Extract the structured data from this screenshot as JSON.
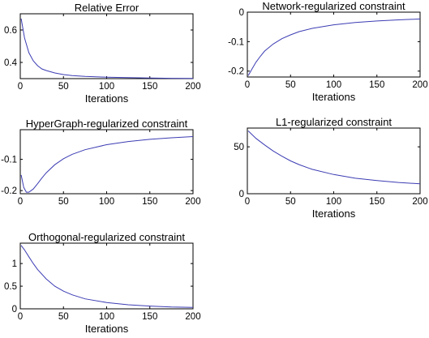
{
  "chart_data": [
    {
      "type": "line",
      "title": "Relative Error",
      "xlabel": "Iterations",
      "ylabel": "",
      "xlim": [
        0,
        200
      ],
      "ylim": [
        0.3,
        0.7
      ],
      "xticks": [
        0,
        50,
        100,
        150,
        200
      ],
      "yticks": [
        0.4,
        0.6
      ],
      "ytick_labels": [
        "0.4",
        "0.6"
      ],
      "grid": false,
      "series": [
        {
          "color": "#3c3cb4",
          "x": [
            1,
            5,
            10,
            15,
            20,
            25,
            30,
            40,
            50,
            60,
            75,
            100,
            125,
            150,
            175,
            200
          ],
          "y": [
            0.67,
            0.55,
            0.46,
            0.41,
            0.38,
            0.36,
            0.35,
            0.335,
            0.325,
            0.319,
            0.314,
            0.309,
            0.306,
            0.304,
            0.302,
            0.301
          ]
        }
      ]
    },
    {
      "type": "line",
      "title": "Network-regularized constraint",
      "xlabel": "Iterations",
      "ylabel": "",
      "xlim": [
        0,
        200
      ],
      "ylim": [
        -0.22,
        0
      ],
      "xticks": [
        0,
        50,
        100,
        150,
        200
      ],
      "yticks": [
        -0.2,
        -0.1,
        0
      ],
      "ytick_labels": [
        "-0.2",
        "-0.1",
        "0"
      ],
      "grid": false,
      "series": [
        {
          "color": "#3c3cb4",
          "x": [
            1,
            5,
            10,
            15,
            20,
            30,
            40,
            50,
            60,
            75,
            100,
            125,
            150,
            175,
            200
          ],
          "y": [
            -0.215,
            -0.195,
            -0.17,
            -0.15,
            -0.132,
            -0.108,
            -0.09,
            -0.077,
            -0.066,
            -0.055,
            -0.043,
            -0.035,
            -0.03,
            -0.026,
            -0.023
          ]
        }
      ]
    },
    {
      "type": "line",
      "title": "HyperGraph-regularized constraint",
      "xlabel": "",
      "ylabel": "",
      "xlim": [
        0,
        200
      ],
      "ylim": [
        -0.21,
        -0.005
      ],
      "xticks": [
        0,
        50,
        100,
        150,
        200
      ],
      "yticks": [
        -0.2,
        -0.1
      ],
      "ytick_labels": [
        "-0.2",
        "-0.1"
      ],
      "grid": false,
      "series": [
        {
          "color": "#3c3cb4",
          "x": [
            1,
            4,
            7,
            10,
            15,
            20,
            25,
            30,
            40,
            50,
            60,
            75,
            100,
            125,
            150,
            175,
            200
          ],
          "y": [
            -0.15,
            -0.19,
            -0.205,
            -0.205,
            -0.195,
            -0.178,
            -0.16,
            -0.143,
            -0.117,
            -0.098,
            -0.084,
            -0.069,
            -0.053,
            -0.043,
            -0.036,
            -0.031,
            -0.027
          ]
        }
      ]
    },
    {
      "type": "line",
      "title": "L1-regularized constraint",
      "xlabel": "Iterations",
      "ylabel": "",
      "xlim": [
        0,
        200
      ],
      "ylim": [
        0,
        70
      ],
      "xticks": [
        0,
        50,
        100,
        150,
        200
      ],
      "yticks": [
        0,
        50
      ],
      "ytick_labels": [
        "0",
        "50"
      ],
      "grid": false,
      "series": [
        {
          "color": "#3c3cb4",
          "x": [
            1,
            10,
            20,
            30,
            40,
            50,
            60,
            75,
            100,
            125,
            150,
            175,
            200
          ],
          "y": [
            67,
            59,
            52,
            45.5,
            40,
            35,
            31,
            26,
            20.5,
            16.5,
            14,
            12,
            10.5
          ]
        }
      ]
    },
    {
      "type": "line",
      "title": "Orthogonal-regularized constraint",
      "xlabel": "Iterations",
      "ylabel": "",
      "xlim": [
        0,
        200
      ],
      "ylim": [
        0,
        1.45
      ],
      "xticks": [
        0,
        50,
        100,
        150,
        200
      ],
      "yticks": [
        0,
        0.5,
        1
      ],
      "ytick_labels": [
        "0",
        "0.5",
        "1"
      ],
      "grid": false,
      "series": [
        {
          "color": "#3c3cb4",
          "x": [
            1,
            5,
            10,
            15,
            20,
            30,
            40,
            50,
            60,
            75,
            100,
            125,
            150,
            175,
            200
          ],
          "y": [
            1.4,
            1.3,
            1.15,
            1.0,
            0.87,
            0.66,
            0.5,
            0.39,
            0.31,
            0.22,
            0.14,
            0.09,
            0.06,
            0.04,
            0.03
          ]
        }
      ]
    }
  ]
}
